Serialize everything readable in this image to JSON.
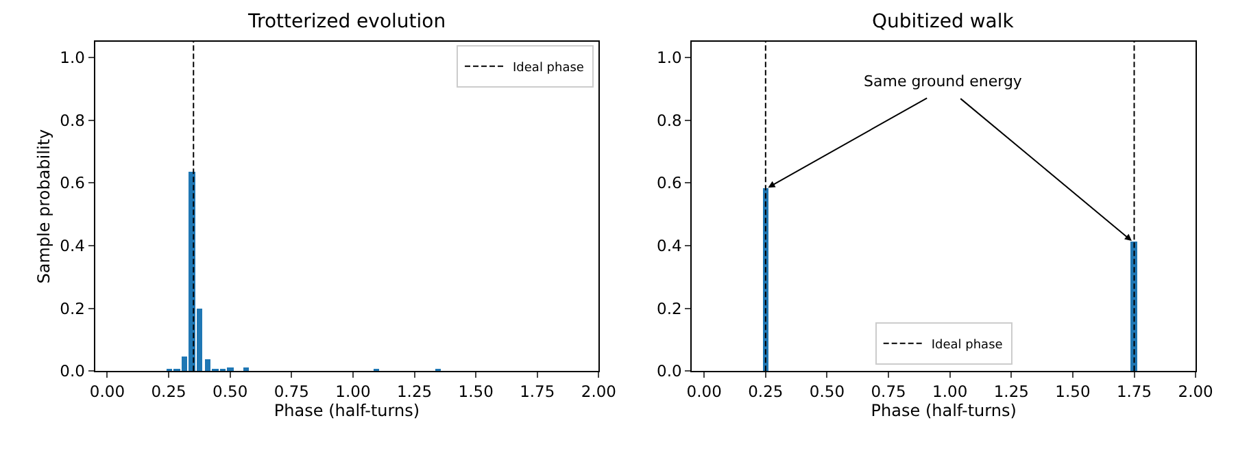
{
  "chart_data": [
    {
      "type": "bar",
      "title": "Trotterized evolution",
      "xlabel": "Phase (half-turns)",
      "ylabel": "Sample probability",
      "series": [
        {
          "color": "#1f77b4",
          "x": [
            0.25,
            0.28125,
            0.3125,
            0.34375,
            0.375,
            0.40625,
            0.4375,
            0.46875,
            0.5,
            0.5625,
            1.09375,
            1.34375
          ],
          "values": [
            0.004,
            0.004,
            0.047,
            0.634,
            0.201,
            0.039,
            0.004,
            0.004,
            0.013,
            0.013,
            0.004,
            0.004
          ]
        }
      ],
      "ref_lines": [
        {
          "axis": "x",
          "value": 0.351,
          "label": "Ideal phase",
          "color": "#000000",
          "line_style": "dashed"
        }
      ],
      "xlim": [
        -0.05,
        2.0
      ],
      "ylim": [
        0,
        1.05
      ],
      "xticks": [
        {
          "value": 0,
          "label": "0.00"
        },
        {
          "value": 0.25,
          "label": "0.25"
        },
        {
          "value": 0.5,
          "label": "0.50"
        },
        {
          "value": 0.75,
          "label": "0.75"
        },
        {
          "value": 1,
          "label": "1.00"
        },
        {
          "value": 1.25,
          "label": "1.25"
        },
        {
          "value": 1.5,
          "label": "1.50"
        },
        {
          "value": 1.75,
          "label": "1.75"
        },
        {
          "value": 2,
          "label": "2.00"
        }
      ],
      "yticks": [
        {
          "value": 0,
          "label": "0.0"
        },
        {
          "value": 0.2,
          "label": "0.2"
        },
        {
          "value": 0.4,
          "label": "0.4"
        },
        {
          "value": 0.6,
          "label": "0.6"
        },
        {
          "value": 0.8,
          "label": "0.8"
        },
        {
          "value": 1,
          "label": "1.0"
        }
      ],
      "legend": "top right"
    },
    {
      "type": "bar",
      "title": "Qubitized walk",
      "xlabel": "Phase (half-turns)",
      "series": [
        {
          "color": "#1f77b4",
          "x": [
            0.25,
            1.75
          ],
          "values": [
            0.585,
            0.415
          ]
        }
      ],
      "ref_lines": [
        {
          "axis": "x",
          "value": 0.25,
          "label": "Ideal phase",
          "color": "#000000",
          "line_style": "dashed"
        },
        {
          "axis": "x",
          "value": 1.75,
          "color": "#000000",
          "line_style": "dashed"
        }
      ],
      "annotations": [
        {
          "text": "Same ground energy",
          "x": 0.25,
          "y": 0.585
        }
      ],
      "xlim": [
        -0.05,
        2.0
      ],
      "ylim": [
        0,
        1.05
      ],
      "xticks": [
        {
          "value": 0,
          "label": "0.00"
        },
        {
          "value": 0.25,
          "label": "0.25"
        },
        {
          "value": 0.5,
          "label": "0.50"
        },
        {
          "value": 0.75,
          "label": "0.75"
        },
        {
          "value": 1,
          "label": "1.00"
        },
        {
          "value": 1.25,
          "label": "1.25"
        },
        {
          "value": 1.5,
          "label": "1.50"
        },
        {
          "value": 1.75,
          "label": "1.75"
        },
        {
          "value": 2,
          "label": "2.00"
        }
      ],
      "yticks": [
        {
          "value": 0,
          "label": "0.0"
        },
        {
          "value": 0.2,
          "label": "0.2"
        },
        {
          "value": 0.4,
          "label": "0.4"
        },
        {
          "value": 0.6,
          "label": "0.6"
        },
        {
          "value": 0.8,
          "label": "0.8"
        },
        {
          "value": 1,
          "label": "1.0"
        }
      ],
      "legend": "bottom"
    }
  ]
}
